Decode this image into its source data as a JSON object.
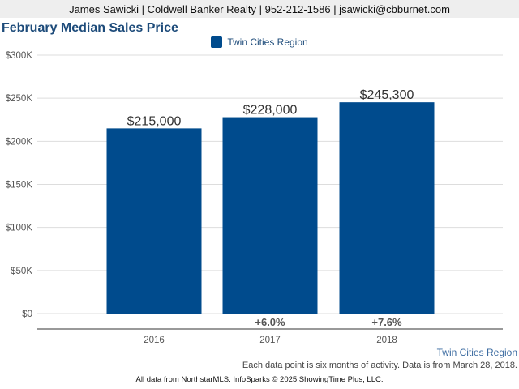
{
  "header": {
    "contact": "James Sawicki | Coldwell Banker Realty | 952-212-1586 | jsawicki@cbburnet.com"
  },
  "colors": {
    "bar": "#004b8d",
    "title": "#1d4b7a",
    "grid": "#dddddd",
    "axis": "#555555"
  },
  "chart_data": {
    "type": "bar",
    "title": "February Median Sales Price",
    "xlabel": "",
    "ylabel": "",
    "categories": [
      "2016",
      "2017",
      "2018"
    ],
    "series": [
      {
        "name": "Twin Cities Region",
        "values": [
          215000,
          228000,
          245300
        ],
        "data_labels": [
          "$215,000",
          "$228,000",
          "$245,300"
        ]
      }
    ],
    "change_labels": [
      "",
      "+6.0%",
      "+7.6%"
    ],
    "ylim": [
      0,
      300000
    ],
    "yticks": [
      0,
      50000,
      100000,
      150000,
      200000,
      250000,
      300000
    ],
    "ytick_labels": [
      "$0",
      "$50K",
      "$100K",
      "$150K",
      "$200K",
      "$250K",
      "$300K"
    ],
    "grid": true,
    "legend": "top-center"
  },
  "footer": {
    "source_label": "Twin Cities Region",
    "note": "Each data point is six months of activity. Data is from March 28, 2018.",
    "credit": "All data from NorthstarMLS. InfoSparks © 2025 ShowingTime Plus, LLC."
  }
}
